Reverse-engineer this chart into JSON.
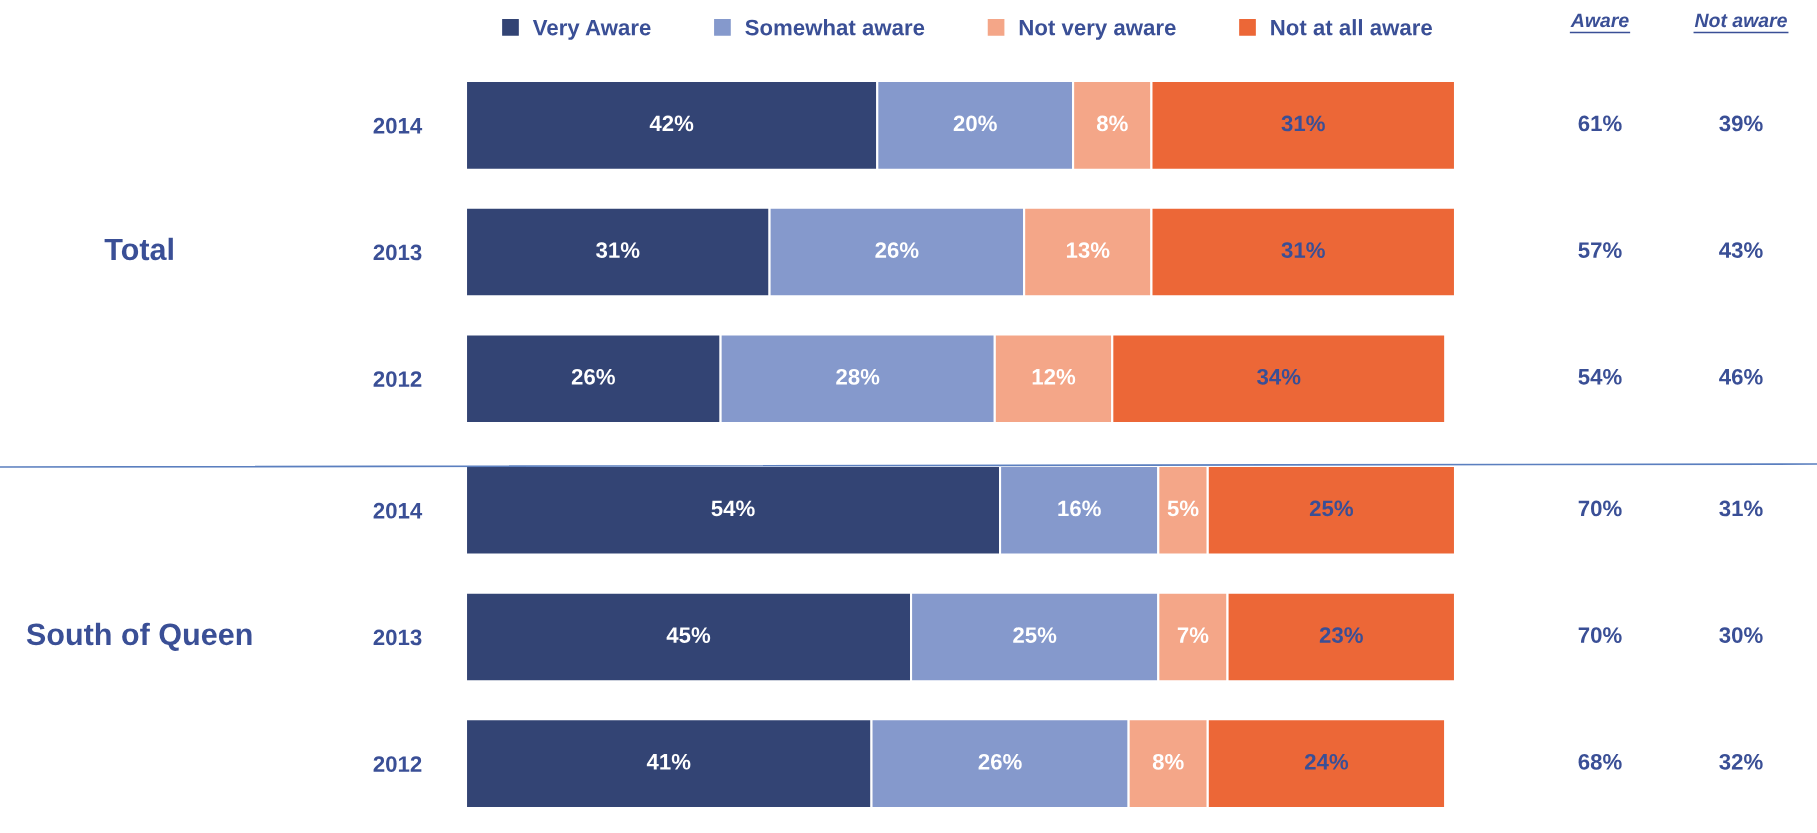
{
  "chart_data": [
    {
      "type": "bar",
      "orientation": "horizontal",
      "stacked": true,
      "ylabel": "Total",
      "categories": [
        "2014",
        "2013",
        "2012"
      ],
      "tick_labels": "y",
      "legend": "top",
      "grid": false,
      "series": [
        {
          "name": "Very Aware",
          "color": "#334474",
          "values": [
            42,
            31,
            26
          ],
          "value_labels": [
            "42%",
            "31%",
            "26%"
          ]
        },
        {
          "name": "Somewhat aware",
          "color": "#8599cc",
          "values": [
            20,
            26,
            28
          ],
          "value_labels": [
            "20%",
            "26%",
            "28%"
          ]
        },
        {
          "name": "Not very aware",
          "color": "#f4a688",
          "values": [
            8,
            13,
            12
          ],
          "value_labels": [
            "8%",
            "13%",
            "12%"
          ]
        },
        {
          "name": "Not at all aware",
          "color": "#ec6737",
          "values": [
            31,
            31,
            34
          ],
          "value_labels": [
            "31%",
            "31%",
            "34%"
          ]
        }
      ],
      "annotations": [
        "Aware",
        "Not aware",
        "61%",
        "39%",
        "57%",
        "43%",
        "54%",
        "46%"
      ]
    },
    {
      "type": "bar",
      "orientation": "horizontal",
      "stacked": true,
      "ylabel": "South of Queen",
      "categories": [
        "2014",
        "2013",
        "2012"
      ],
      "tick_labels": "y",
      "grid": false,
      "series": [
        {
          "color": "#334474",
          "values": [
            54,
            45,
            41
          ],
          "value_labels": [
            "54%",
            "45%",
            "41%"
          ]
        },
        {
          "color": "#8599cc",
          "values": [
            16,
            25,
            26
          ],
          "value_labels": [
            "16%",
            "25%",
            "26%"
          ]
        },
        {
          "color": "#f4a688",
          "values": [
            5,
            7,
            8
          ],
          "value_labels": [
            "5%",
            "7%",
            "8%"
          ]
        },
        {
          "color": "#ec6737",
          "values": [
            25,
            23,
            24
          ],
          "value_labels": [
            "25%",
            "23%",
            "24%"
          ]
        }
      ],
      "annotations": [
        "70%",
        "31%",
        "70%",
        "30%",
        "68%",
        "32%"
      ]
    }
  ]
}
